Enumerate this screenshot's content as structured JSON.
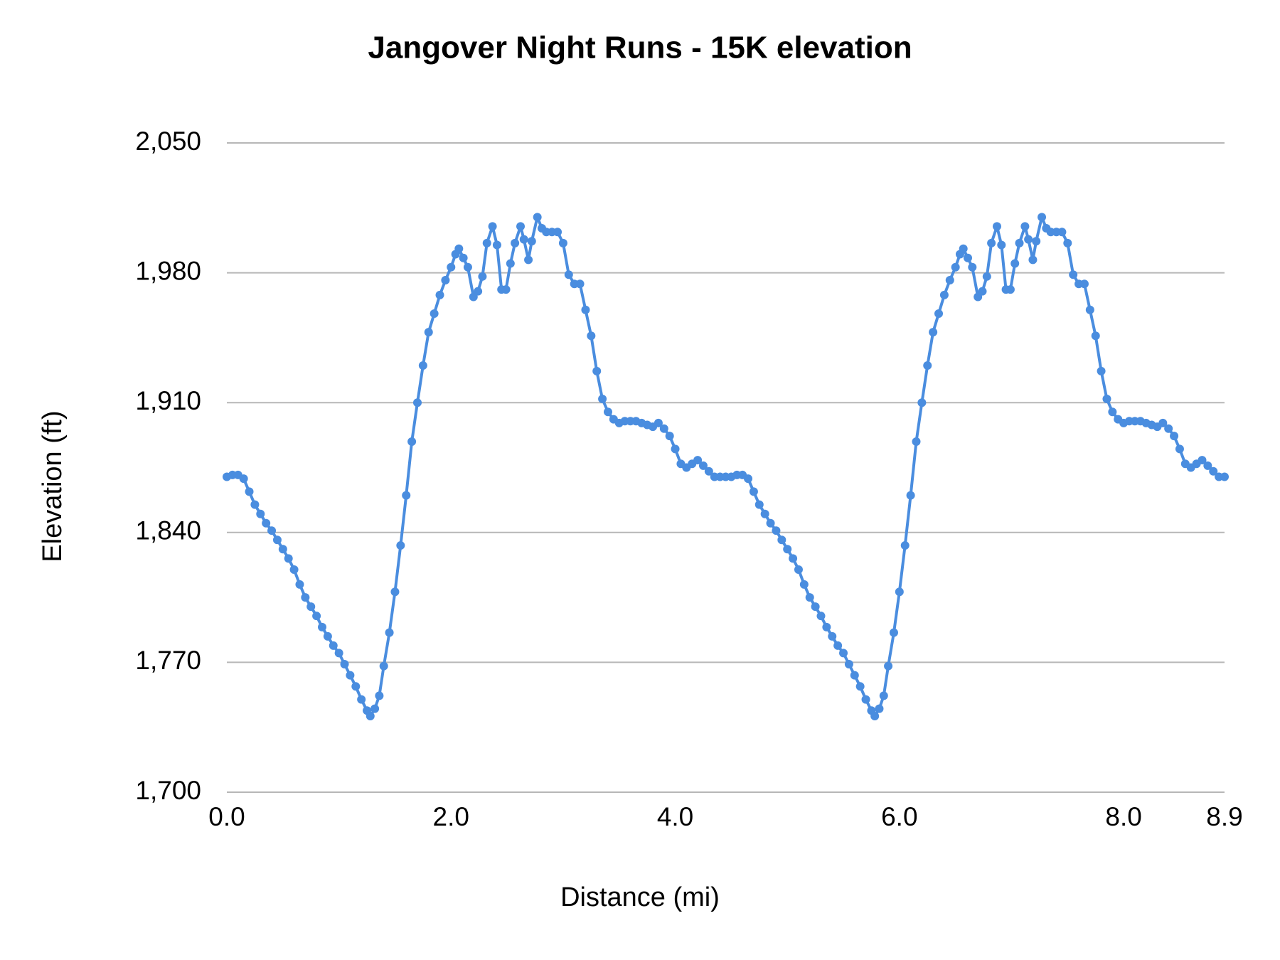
{
  "chart_data": {
    "type": "line",
    "title": "Jangover Night Runs - 15K elevation",
    "x_label": "Distance (mi)",
    "y_label": "Elevation (ft)",
    "color": "#4a8ddf",
    "grid": true,
    "xlim": [
      0,
      8.9
    ],
    "ylim": [
      1700,
      2050
    ],
    "xticks": [
      {
        "value": 0,
        "label": "0.0"
      },
      {
        "value": 2,
        "label": "2.0"
      },
      {
        "value": 4,
        "label": "4.0"
      },
      {
        "value": 6,
        "label": "6.0"
      },
      {
        "value": 8,
        "label": "8.0"
      },
      8.9
    ],
    "yticks": [
      {
        "value": 1700,
        "label": "1,700"
      },
      {
        "value": 1770,
        "label": "1,770"
      },
      {
        "value": 1840,
        "label": "1,840"
      },
      {
        "value": 1910,
        "label": "1,910"
      },
      {
        "value": 1980,
        "label": "1,980"
      },
      {
        "value": 2050,
        "label": "2,050"
      }
    ],
    "x": [
      0,
      0.05,
      0.1,
      0.15,
      0.2,
      0.25,
      0.3,
      0.35,
      0.4,
      0.45,
      0.5,
      0.55,
      0.6,
      0.65,
      0.7,
      0.75,
      0.8,
      0.85,
      0.9,
      0.95,
      1.0,
      1.05,
      1.1,
      1.15,
      1.2,
      1.25,
      1.28,
      1.32,
      1.36,
      1.4,
      1.45,
      1.5,
      1.55,
      1.6,
      1.65,
      1.7,
      1.75,
      1.8,
      1.85,
      1.9,
      1.95,
      2.0,
      2.04,
      2.07,
      2.11,
      2.15,
      2.2,
      2.24,
      2.28,
      2.32,
      2.37,
      2.41,
      2.45,
      2.49,
      2.53,
      2.57,
      2.62,
      2.65,
      2.69,
      2.72,
      2.77,
      2.81,
      2.85,
      2.9,
      2.95,
      3.0,
      3.05,
      3.1,
      3.15,
      3.2,
      3.25,
      3.3,
      3.35,
      3.4,
      3.45,
      3.5,
      3.55,
      3.6,
      3.65,
      3.7,
      3.75,
      3.8,
      3.85,
      3.9,
      3.95,
      4.0,
      4.05,
      4.1,
      4.15,
      4.2,
      4.25,
      4.3,
      4.35,
      4.4,
      4.45,
      4.5,
      4.55,
      4.6,
      4.65,
      4.7,
      4.75,
      4.8,
      4.85,
      4.9,
      4.95,
      5.0,
      5.05,
      5.1,
      5.15,
      5.2,
      5.25,
      5.3,
      5.35,
      5.4,
      5.45,
      5.5,
      5.55,
      5.6,
      5.65,
      5.7,
      5.75,
      5.78,
      5.82,
      5.86,
      5.9,
      5.95,
      6.0,
      6.05,
      6.1,
      6.15,
      6.2,
      6.25,
      6.3,
      6.35,
      6.4,
      6.45,
      6.5,
      6.54,
      6.57,
      6.61,
      6.65,
      6.7,
      6.74,
      6.78,
      6.82,
      6.87,
      6.91,
      6.95,
      6.99,
      7.03,
      7.07,
      7.12,
      7.15,
      7.19,
      7.22,
      7.27,
      7.31,
      7.35,
      7.4,
      7.45,
      7.5,
      7.55,
      7.6,
      7.65,
      7.7,
      7.75,
      7.8,
      7.85,
      7.9,
      7.95,
      8.0,
      8.05,
      8.1,
      8.15,
      8.2,
      8.25,
      8.3,
      8.35,
      8.4,
      8.45,
      8.5,
      8.55,
      8.6,
      8.65,
      8.7,
      8.75,
      8.8,
      8.85,
      8.9
    ],
    "values": [
      1870,
      1871,
      1871,
      1869,
      1862,
      1855,
      1850,
      1845,
      1841,
      1836,
      1831,
      1826,
      1820,
      1812,
      1805,
      1800,
      1795,
      1789,
      1784,
      1779,
      1775,
      1769,
      1763,
      1757,
      1750,
      1744,
      1741,
      1745,
      1752,
      1768,
      1786,
      1808,
      1833,
      1860,
      1889,
      1910,
      1930,
      1948,
      1958,
      1968,
      1976,
      1983,
      1990,
      1993,
      1988,
      1983,
      1967,
      1970,
      1978,
      1996,
      2005,
      1995,
      1971,
      1971,
      1985,
      1996,
      2005,
      1998,
      1987,
      1997,
      2010,
      2004,
      2002,
      2002,
      2002,
      1996,
      1979,
      1974,
      1974,
      1960,
      1946,
      1927,
      1912,
      1905,
      1901,
      1899,
      1900,
      1900,
      1900,
      1899,
      1898,
      1897,
      1899,
      1896,
      1892,
      1885,
      1877,
      1875,
      1877,
      1879,
      1876,
      1873,
      1870,
      1870,
      1870,
      1870,
      1871,
      1871,
      1869,
      1862,
      1855,
      1850,
      1845,
      1841,
      1836,
      1831,
      1826,
      1820,
      1812,
      1805,
      1800,
      1795,
      1789,
      1784,
      1779,
      1775,
      1769,
      1763,
      1757,
      1750,
      1744,
      1741,
      1745,
      1752,
      1768,
      1786,
      1808,
      1833,
      1860,
      1889,
      1910,
      1930,
      1948,
      1958,
      1968,
      1976,
      1983,
      1990,
      1993,
      1988,
      1983,
      1967,
      1970,
      1978,
      1996,
      2005,
      1995,
      1971,
      1971,
      1985,
      1996,
      2005,
      1998,
      1987,
      1997,
      2010,
      2004,
      2002,
      2002,
      2002,
      1996,
      1979,
      1974,
      1974,
      1960,
      1946,
      1927,
      1912,
      1905,
      1901,
      1899,
      1900,
      1900,
      1900,
      1899,
      1898,
      1897,
      1899,
      1896,
      1892,
      1885,
      1877,
      1875,
      1877,
      1879,
      1876,
      1873,
      1870,
      1870
    ]
  }
}
